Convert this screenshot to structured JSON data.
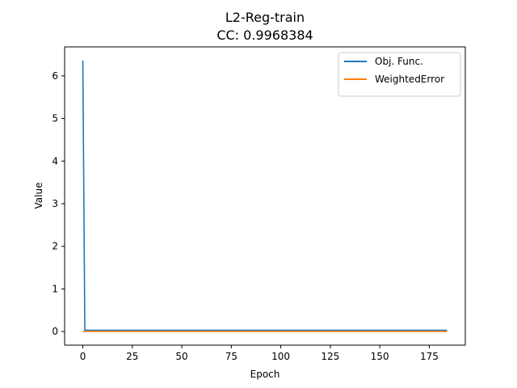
{
  "chart_data": {
    "type": "line",
    "title": "L2-Reg-train",
    "subtitle": "CC: 0.9968384",
    "xlabel": "Epoch",
    "ylabel": "Value",
    "xlim": [
      -9.2,
      193.2
    ],
    "ylim": [
      -0.32,
      6.68
    ],
    "x_ticks": [
      0,
      25,
      50,
      75,
      100,
      125,
      150,
      175
    ],
    "y_ticks": [
      0,
      1,
      2,
      3,
      4,
      5,
      6
    ],
    "grid": false,
    "legend_position": "top-right",
    "series": [
      {
        "name": "Obj. Func.",
        "color": "#1f77b4",
        "x": [
          0,
          1,
          2,
          10,
          50,
          100,
          150,
          184
        ],
        "y": [
          6.36,
          0.03,
          0.03,
          0.03,
          0.03,
          0.03,
          0.03,
          0.03
        ]
      },
      {
        "name": "WeightedError",
        "color": "#ff7f0e",
        "x": [
          0,
          1,
          2,
          10,
          50,
          100,
          150,
          184
        ],
        "y": [
          0.005,
          0.002,
          0.002,
          0.002,
          0.002,
          0.002,
          0.002,
          0.002
        ]
      }
    ]
  }
}
